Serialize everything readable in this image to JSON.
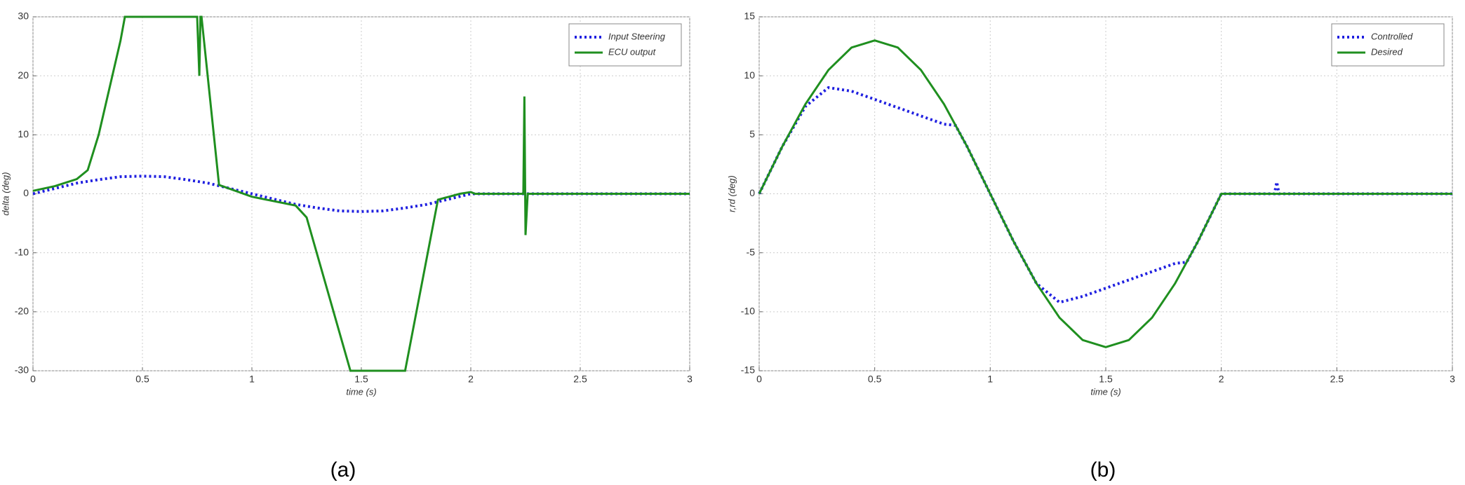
{
  "chart_data": [
    {
      "type": "line",
      "caption": "(a)",
      "xlabel": "time (s)",
      "ylabel": "delta (deg)",
      "xlim": [
        0,
        3
      ],
      "ylim": [
        -30,
        30
      ],
      "xticks": [
        0,
        0.5,
        1,
        1.5,
        2,
        2.5,
        3
      ],
      "yticks": [
        -30,
        -20,
        -10,
        0,
        10,
        20,
        30
      ],
      "grid": true,
      "legend": "upper right",
      "series": [
        {
          "name": "Input Steering",
          "color": "#2020e0",
          "style": "dotted",
          "x": [
            0,
            0.1,
            0.2,
            0.3,
            0.4,
            0.5,
            0.6,
            0.7,
            0.8,
            0.9,
            1.0,
            1.1,
            1.2,
            1.3,
            1.4,
            1.5,
            1.6,
            1.7,
            1.8,
            1.9,
            2.0,
            2.5,
            3.0
          ],
          "values": [
            0,
            0.9,
            1.8,
            2.4,
            2.9,
            3.0,
            2.9,
            2.4,
            1.8,
            0.9,
            0,
            -0.9,
            -1.8,
            -2.4,
            -2.9,
            -3.0,
            -2.9,
            -2.4,
            -1.8,
            -0.9,
            0,
            0,
            0
          ]
        },
        {
          "name": "ECU output",
          "color": "#1f8f1f",
          "style": "solid",
          "x": [
            0,
            0.1,
            0.2,
            0.25,
            0.3,
            0.4,
            0.42,
            0.7,
            0.75,
            0.76,
            0.765,
            0.77,
            0.85,
            1.0,
            1.2,
            1.25,
            1.45,
            1.7,
            1.85,
            1.95,
            2.0,
            2.02,
            2.24,
            2.245,
            2.25,
            2.26,
            3.0
          ],
          "values": [
            0.5,
            1.3,
            2.5,
            4,
            10,
            26,
            30,
            30,
            30,
            20,
            30,
            30,
            1.5,
            -0.5,
            -2,
            -4,
            -30,
            -30,
            -1,
            0,
            0.3,
            0,
            0,
            16.5,
            -7,
            0,
            0
          ]
        }
      ]
    },
    {
      "type": "line",
      "caption": "(b)",
      "xlabel": "time (s)",
      "ylabel": "r,rd (deg)",
      "xlim": [
        0,
        3
      ],
      "ylim": [
        -15,
        15
      ],
      "xticks": [
        0,
        0.5,
        1,
        1.5,
        2,
        2.5,
        3
      ],
      "yticks": [
        -15,
        -10,
        -5,
        0,
        5,
        10,
        15
      ],
      "grid": true,
      "legend": "upper right",
      "series": [
        {
          "name": "Controlled",
          "color": "#2020e0",
          "style": "dotted",
          "x": [
            0,
            0.1,
            0.2,
            0.3,
            0.4,
            0.5,
            0.6,
            0.7,
            0.8,
            0.85,
            0.9,
            1.0,
            1.1,
            1.2,
            1.3,
            1.4,
            1.5,
            1.6,
            1.7,
            1.8,
            1.85,
            1.9,
            2.0,
            2.23,
            2.24,
            2.25,
            3.0
          ],
          "values": [
            0,
            4.0,
            7.4,
            9.0,
            8.7,
            8.0,
            7.3,
            6.6,
            5.9,
            5.8,
            4.0,
            0,
            -4.0,
            -7.6,
            -9.2,
            -8.7,
            -8.0,
            -7.3,
            -6.6,
            -5.9,
            -5.8,
            -4.0,
            0,
            0,
            1,
            0,
            0
          ]
        },
        {
          "name": "Desired",
          "color": "#1f8f1f",
          "style": "solid",
          "x": [
            0,
            0.1,
            0.2,
            0.3,
            0.4,
            0.5,
            0.6,
            0.7,
            0.8,
            0.9,
            1.0,
            1.1,
            1.2,
            1.3,
            1.4,
            1.5,
            1.6,
            1.7,
            1.8,
            1.9,
            2.0,
            2.5,
            3.0
          ],
          "values": [
            0,
            4.0,
            7.6,
            10.5,
            12.4,
            13,
            12.4,
            10.5,
            7.6,
            4.0,
            0,
            -4.0,
            -7.6,
            -10.5,
            -12.4,
            -13,
            -12.4,
            -10.5,
            -7.6,
            -4.0,
            0,
            0,
            0
          ]
        }
      ]
    }
  ]
}
